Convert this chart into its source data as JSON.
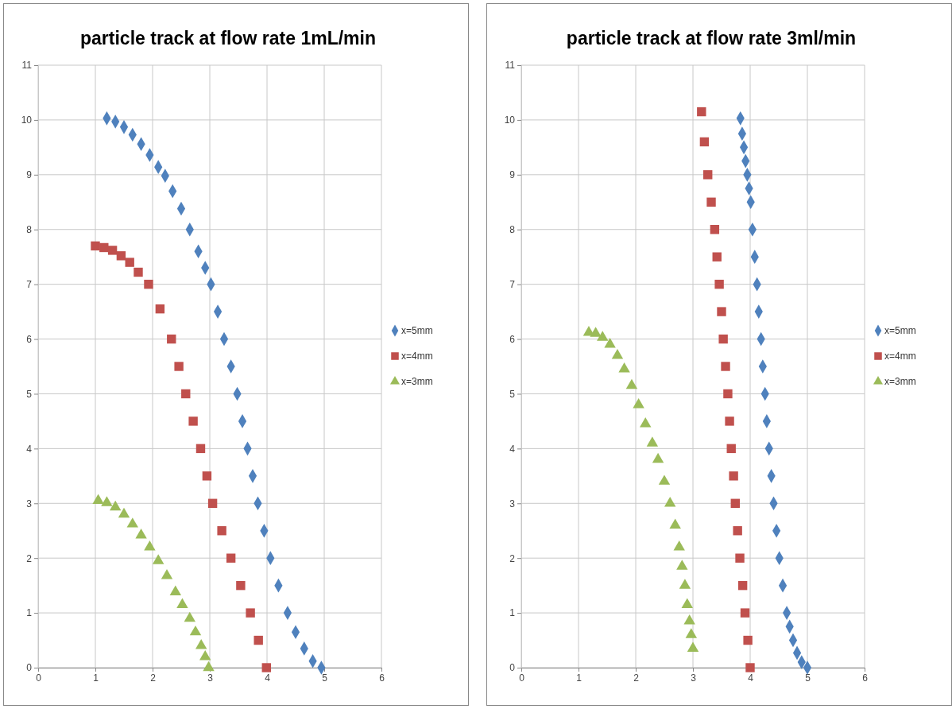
{
  "chart_data": [
    {
      "type": "scatter",
      "title": "particle track at flow rate 1mL/min",
      "xlim": [
        0,
        6
      ],
      "xticks": [
        0,
        1,
        2,
        3,
        4,
        5,
        6
      ],
      "ylim": [
        0,
        11
      ],
      "yticks": [
        0,
        1,
        2,
        3,
        4,
        5,
        6,
        7,
        8,
        9,
        10,
        11
      ],
      "grid": true,
      "legend": "right",
      "series": [
        {
          "name": "x=5mm",
          "color": "#4f81bd",
          "marker": "diamond",
          "x": [
            1.2,
            1.35,
            1.5,
            1.65,
            1.8,
            1.95,
            2.1,
            2.22,
            2.35,
            2.5,
            2.65,
            2.8,
            2.92,
            3.02,
            3.14,
            3.25,
            3.37,
            3.48,
            3.57,
            3.66,
            3.75,
            3.84,
            3.95,
            4.06,
            4.2,
            4.36,
            4.5,
            4.65,
            4.8,
            4.95
          ],
          "values": [
            10.03,
            9.97,
            9.87,
            9.73,
            9.56,
            9.36,
            9.14,
            8.98,
            8.7,
            8.38,
            8.0,
            7.6,
            7.3,
            7.0,
            6.5,
            6.0,
            5.5,
            5.0,
            4.5,
            4.0,
            3.5,
            3.0,
            2.5,
            2.0,
            1.5,
            1.0,
            0.65,
            0.35,
            0.12,
            0.0
          ]
        },
        {
          "name": "x=4mm",
          "color": "#c0504d",
          "marker": "square",
          "x": [
            1.0,
            1.15,
            1.3,
            1.45,
            1.6,
            1.75,
            1.93,
            2.13,
            2.33,
            2.46,
            2.58,
            2.71,
            2.84,
            2.95,
            3.05,
            3.21,
            3.37,
            3.54,
            3.71,
            3.85,
            3.99
          ],
          "values": [
            7.7,
            7.67,
            7.62,
            7.52,
            7.4,
            7.22,
            7.0,
            6.55,
            6.0,
            5.5,
            5.0,
            4.5,
            4.0,
            3.5,
            3.0,
            2.5,
            2.0,
            1.5,
            1.0,
            0.5,
            0.0
          ]
        },
        {
          "name": "x=3mm",
          "color": "#9bbb59",
          "marker": "triangle",
          "x": [
            1.05,
            1.2,
            1.35,
            1.5,
            1.65,
            1.8,
            1.95,
            2.1,
            2.25,
            2.4,
            2.52,
            2.65,
            2.75,
            2.85,
            2.92,
            2.98
          ],
          "values": [
            3.05,
            3.01,
            2.93,
            2.8,
            2.62,
            2.42,
            2.2,
            1.95,
            1.68,
            1.38,
            1.15,
            0.9,
            0.65,
            0.4,
            0.2,
            0.0
          ]
        }
      ]
    },
    {
      "type": "scatter",
      "title": "particle track at flow rate 3ml/min",
      "xlim": [
        0,
        6
      ],
      "xticks": [
        0,
        1,
        2,
        3,
        4,
        5,
        6
      ],
      "ylim": [
        0,
        11
      ],
      "yticks": [
        0,
        1,
        2,
        3,
        4,
        5,
        6,
        7,
        8,
        9,
        10,
        11
      ],
      "grid": true,
      "legend": "right",
      "series": [
        {
          "name": "x=5mm",
          "color": "#4f81bd",
          "marker": "diamond",
          "x": [
            3.83,
            3.86,
            3.89,
            3.92,
            3.95,
            3.98,
            4.01,
            4.04,
            4.08,
            4.12,
            4.15,
            4.19,
            4.22,
            4.26,
            4.29,
            4.33,
            4.37,
            4.41,
            4.46,
            4.51,
            4.57,
            4.64,
            4.69,
            4.75,
            4.82,
            4.9,
            5.0
          ],
          "values": [
            10.03,
            9.75,
            9.5,
            9.25,
            9.0,
            8.75,
            8.5,
            8.0,
            7.5,
            7.0,
            6.5,
            6.0,
            5.5,
            5.0,
            4.5,
            4.0,
            3.5,
            3.0,
            2.5,
            2.0,
            1.5,
            1.0,
            0.75,
            0.5,
            0.27,
            0.1,
            0.0
          ]
        },
        {
          "name": "x=4mm",
          "color": "#c0504d",
          "marker": "square",
          "x": [
            3.15,
            3.2,
            3.26,
            3.32,
            3.38,
            3.42,
            3.46,
            3.5,
            3.53,
            3.57,
            3.61,
            3.64,
            3.67,
            3.71,
            3.74,
            3.78,
            3.82,
            3.87,
            3.91,
            3.96,
            4.0
          ],
          "values": [
            10.15,
            9.6,
            9.0,
            8.5,
            8.0,
            7.5,
            7.0,
            6.5,
            6.0,
            5.5,
            5.0,
            4.5,
            4.0,
            3.5,
            3.0,
            2.5,
            2.0,
            1.5,
            1.0,
            0.5,
            0.0
          ]
        },
        {
          "name": "x=3mm",
          "color": "#9bbb59",
          "marker": "triangle",
          "x": [
            1.18,
            1.3,
            1.42,
            1.55,
            1.68,
            1.8,
            1.93,
            2.05,
            2.17,
            2.29,
            2.39,
            2.5,
            2.6,
            2.69,
            2.76,
            2.81,
            2.86,
            2.9,
            2.94,
            2.97,
            3.0
          ],
          "values": [
            6.12,
            6.1,
            6.03,
            5.9,
            5.7,
            5.45,
            5.15,
            4.8,
            4.45,
            4.1,
            3.8,
            3.4,
            3.0,
            2.6,
            2.2,
            1.85,
            1.5,
            1.15,
            0.85,
            0.6,
            0.35
          ]
        }
      ]
    }
  ]
}
